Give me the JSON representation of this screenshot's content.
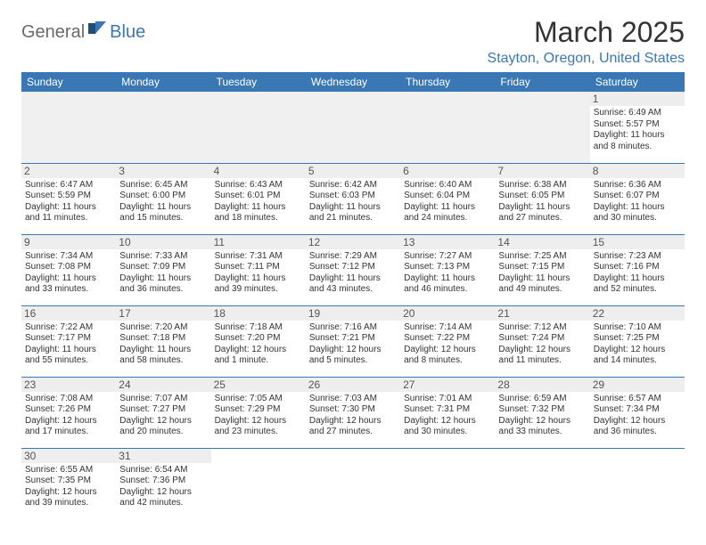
{
  "logo": {
    "general": "General",
    "blue": "Blue"
  },
  "title": "March 2025",
  "location": "Stayton, Oregon, United States",
  "colors": {
    "header_bg": "#3a78b5",
    "header_text": "#ffffff",
    "accent": "#3a78b5",
    "daynum_bg": "#eeeeee",
    "empty_bg": "#f0f0f0"
  },
  "weekdays": [
    "Sunday",
    "Monday",
    "Tuesday",
    "Wednesday",
    "Thursday",
    "Friday",
    "Saturday"
  ],
  "grid": [
    [
      null,
      null,
      null,
      null,
      null,
      null,
      {
        "n": "1",
        "sr": "6:49 AM",
        "ss": "5:57 PM",
        "dl": "11 hours and 8 minutes."
      }
    ],
    [
      {
        "n": "2",
        "sr": "6:47 AM",
        "ss": "5:59 PM",
        "dl": "11 hours and 11 minutes."
      },
      {
        "n": "3",
        "sr": "6:45 AM",
        "ss": "6:00 PM",
        "dl": "11 hours and 15 minutes."
      },
      {
        "n": "4",
        "sr": "6:43 AM",
        "ss": "6:01 PM",
        "dl": "11 hours and 18 minutes."
      },
      {
        "n": "5",
        "sr": "6:42 AM",
        "ss": "6:03 PM",
        "dl": "11 hours and 21 minutes."
      },
      {
        "n": "6",
        "sr": "6:40 AM",
        "ss": "6:04 PM",
        "dl": "11 hours and 24 minutes."
      },
      {
        "n": "7",
        "sr": "6:38 AM",
        "ss": "6:05 PM",
        "dl": "11 hours and 27 minutes."
      },
      {
        "n": "8",
        "sr": "6:36 AM",
        "ss": "6:07 PM",
        "dl": "11 hours and 30 minutes."
      }
    ],
    [
      {
        "n": "9",
        "sr": "7:34 AM",
        "ss": "7:08 PM",
        "dl": "11 hours and 33 minutes."
      },
      {
        "n": "10",
        "sr": "7:33 AM",
        "ss": "7:09 PM",
        "dl": "11 hours and 36 minutes."
      },
      {
        "n": "11",
        "sr": "7:31 AM",
        "ss": "7:11 PM",
        "dl": "11 hours and 39 minutes."
      },
      {
        "n": "12",
        "sr": "7:29 AM",
        "ss": "7:12 PM",
        "dl": "11 hours and 43 minutes."
      },
      {
        "n": "13",
        "sr": "7:27 AM",
        "ss": "7:13 PM",
        "dl": "11 hours and 46 minutes."
      },
      {
        "n": "14",
        "sr": "7:25 AM",
        "ss": "7:15 PM",
        "dl": "11 hours and 49 minutes."
      },
      {
        "n": "15",
        "sr": "7:23 AM",
        "ss": "7:16 PM",
        "dl": "11 hours and 52 minutes."
      }
    ],
    [
      {
        "n": "16",
        "sr": "7:22 AM",
        "ss": "7:17 PM",
        "dl": "11 hours and 55 minutes."
      },
      {
        "n": "17",
        "sr": "7:20 AM",
        "ss": "7:18 PM",
        "dl": "11 hours and 58 minutes."
      },
      {
        "n": "18",
        "sr": "7:18 AM",
        "ss": "7:20 PM",
        "dl": "12 hours and 1 minute."
      },
      {
        "n": "19",
        "sr": "7:16 AM",
        "ss": "7:21 PM",
        "dl": "12 hours and 5 minutes."
      },
      {
        "n": "20",
        "sr": "7:14 AM",
        "ss": "7:22 PM",
        "dl": "12 hours and 8 minutes."
      },
      {
        "n": "21",
        "sr": "7:12 AM",
        "ss": "7:24 PM",
        "dl": "12 hours and 11 minutes."
      },
      {
        "n": "22",
        "sr": "7:10 AM",
        "ss": "7:25 PM",
        "dl": "12 hours and 14 minutes."
      }
    ],
    [
      {
        "n": "23",
        "sr": "7:08 AM",
        "ss": "7:26 PM",
        "dl": "12 hours and 17 minutes."
      },
      {
        "n": "24",
        "sr": "7:07 AM",
        "ss": "7:27 PM",
        "dl": "12 hours and 20 minutes."
      },
      {
        "n": "25",
        "sr": "7:05 AM",
        "ss": "7:29 PM",
        "dl": "12 hours and 23 minutes."
      },
      {
        "n": "26",
        "sr": "7:03 AM",
        "ss": "7:30 PM",
        "dl": "12 hours and 27 minutes."
      },
      {
        "n": "27",
        "sr": "7:01 AM",
        "ss": "7:31 PM",
        "dl": "12 hours and 30 minutes."
      },
      {
        "n": "28",
        "sr": "6:59 AM",
        "ss": "7:32 PM",
        "dl": "12 hours and 33 minutes."
      },
      {
        "n": "29",
        "sr": "6:57 AM",
        "ss": "7:34 PM",
        "dl": "12 hours and 36 minutes."
      }
    ],
    [
      {
        "n": "30",
        "sr": "6:55 AM",
        "ss": "7:35 PM",
        "dl": "12 hours and 39 minutes."
      },
      {
        "n": "31",
        "sr": "6:54 AM",
        "ss": "7:36 PM",
        "dl": "12 hours and 42 minutes."
      },
      null,
      null,
      null,
      null,
      null
    ]
  ],
  "labels": {
    "sunrise": "Sunrise:",
    "sunset": "Sunset:",
    "daylight": "Daylight:"
  }
}
